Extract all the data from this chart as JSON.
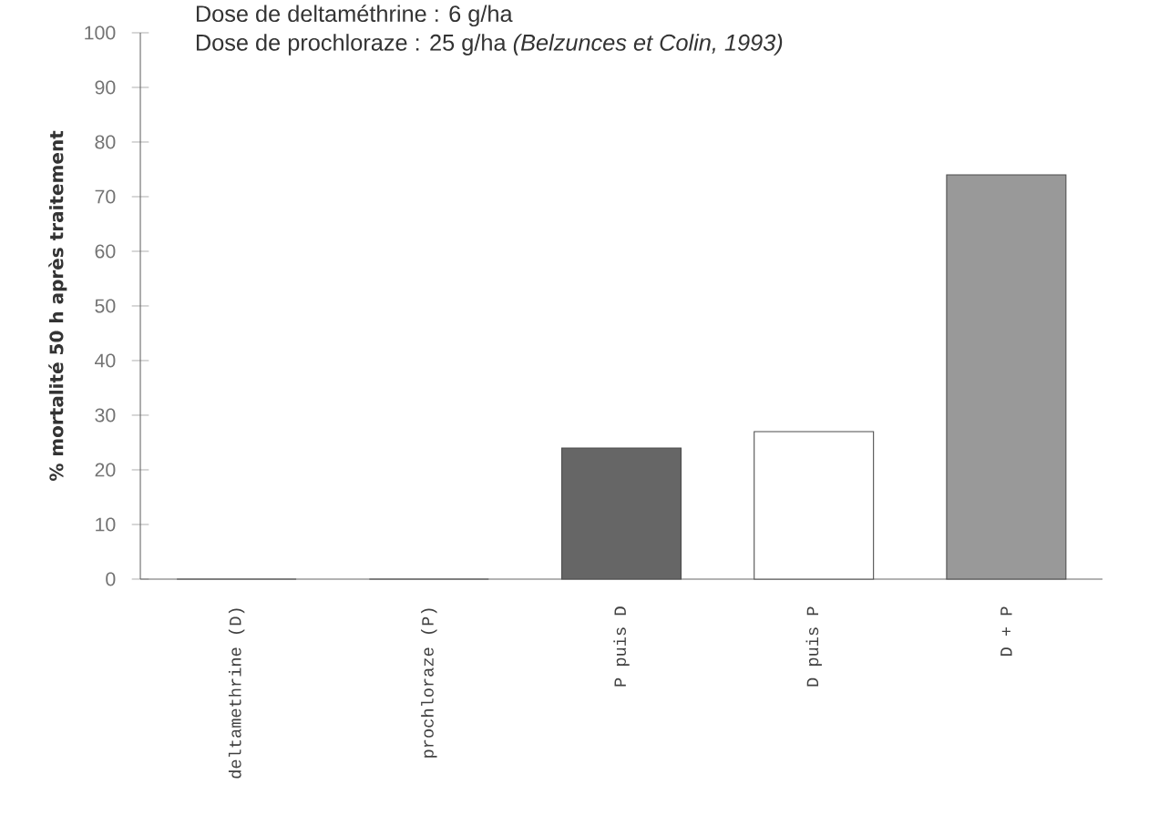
{
  "chart_data": {
    "type": "bar",
    "title": "Dose de deltaméthrine : 6 g/ha",
    "subtitle": "Dose de prochloraze : 25 g/ha *(Belzunces et Colin, 1993)*",
    "ylabel": "% mortalité 50 h après traitement",
    "categories": [
      "deltamethrine (D)",
      "prochloraze (P)",
      "P puis D",
      "D puis P",
      "D + P"
    ],
    "values": [
      0,
      0,
      24,
      27,
      74
    ],
    "colors": [
      "#ffffff",
      "#ffffff",
      "#666666",
      "#ffffff",
      "#999999"
    ],
    "ylim": [
      0,
      100
    ],
    "yticks": [
      0,
      10,
      20,
      30,
      40,
      50,
      60,
      70,
      80,
      90,
      100
    ],
    "grid": false
  }
}
